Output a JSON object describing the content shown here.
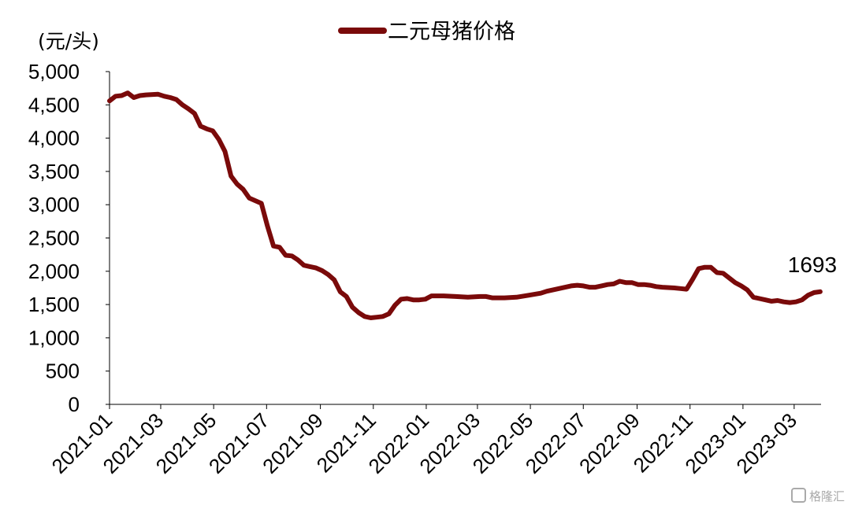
{
  "chart_data": {
    "type": "line",
    "unit_label": "(元/头)",
    "ylim": [
      0,
      5000
    ],
    "y_ticks": [
      {
        "value": 0,
        "label": "0"
      },
      {
        "value": 500,
        "label": "500"
      },
      {
        "value": 1000,
        "label": "1,000"
      },
      {
        "value": 1500,
        "label": "1,500"
      },
      {
        "value": 2000,
        "label": "2,000"
      },
      {
        "value": 2500,
        "label": "2,500"
      },
      {
        "value": 3000,
        "label": "3,000"
      },
      {
        "value": 3500,
        "label": "3,500"
      },
      {
        "value": 4000,
        "label": "4,000"
      },
      {
        "value": 4500,
        "label": "4,500"
      },
      {
        "value": 5000,
        "label": "5,000"
      }
    ],
    "x_ticks": [
      "2021-01",
      "2021-03",
      "2021-05",
      "2021-07",
      "2021-09",
      "2021-11",
      "2022-01",
      "2022-03",
      "2022-05",
      "2022-07",
      "2022-09",
      "2022-11",
      "2023-01",
      "2023-03"
    ],
    "legend_position": "top-center",
    "grid": false,
    "series": [
      {
        "name": "二元母猪价格",
        "color": "#7a0a0a",
        "points": [
          [
            "2021-01-01",
            4560
          ],
          [
            "2021-01-08",
            4630
          ],
          [
            "2021-01-15",
            4640
          ],
          [
            "2021-01-22",
            4680
          ],
          [
            "2021-01-29",
            4610
          ],
          [
            "2021-02-05",
            4640
          ],
          [
            "2021-02-12",
            4650
          ],
          [
            "2021-02-26",
            4660
          ],
          [
            "2021-03-05",
            4630
          ],
          [
            "2021-03-12",
            4610
          ],
          [
            "2021-03-19",
            4580
          ],
          [
            "2021-03-26",
            4500
          ],
          [
            "2021-04-02",
            4440
          ],
          [
            "2021-04-09",
            4370
          ],
          [
            "2021-04-16",
            4180
          ],
          [
            "2021-04-23",
            4140
          ],
          [
            "2021-04-30",
            4110
          ],
          [
            "2021-05-07",
            3980
          ],
          [
            "2021-05-14",
            3800
          ],
          [
            "2021-05-21",
            3430
          ],
          [
            "2021-05-28",
            3310
          ],
          [
            "2021-06-04",
            3230
          ],
          [
            "2021-06-11",
            3100
          ],
          [
            "2021-06-18",
            3060
          ],
          [
            "2021-06-25",
            3020
          ],
          [
            "2021-07-02",
            2680
          ],
          [
            "2021-07-09",
            2380
          ],
          [
            "2021-07-16",
            2360
          ],
          [
            "2021-07-23",
            2240
          ],
          [
            "2021-07-30",
            2230
          ],
          [
            "2021-08-06",
            2170
          ],
          [
            "2021-08-13",
            2090
          ],
          [
            "2021-08-20",
            2070
          ],
          [
            "2021-08-27",
            2050
          ],
          [
            "2021-09-03",
            2010
          ],
          [
            "2021-09-10",
            1950
          ],
          [
            "2021-09-17",
            1870
          ],
          [
            "2021-09-24",
            1690
          ],
          [
            "2021-10-01",
            1620
          ],
          [
            "2021-10-08",
            1460
          ],
          [
            "2021-10-15",
            1380
          ],
          [
            "2021-10-22",
            1320
          ],
          [
            "2021-10-29",
            1300
          ],
          [
            "2021-11-05",
            1310
          ],
          [
            "2021-11-12",
            1320
          ],
          [
            "2021-11-19",
            1360
          ],
          [
            "2021-11-26",
            1490
          ],
          [
            "2021-12-03",
            1580
          ],
          [
            "2021-12-10",
            1590
          ],
          [
            "2021-12-17",
            1570
          ],
          [
            "2021-12-24",
            1570
          ],
          [
            "2021-12-31",
            1580
          ],
          [
            "2022-01-07",
            1630
          ],
          [
            "2022-01-21",
            1630
          ],
          [
            "2022-02-04",
            1620
          ],
          [
            "2022-02-18",
            1610
          ],
          [
            "2022-03-04",
            1620
          ],
          [
            "2022-03-11",
            1620
          ],
          [
            "2022-03-18",
            1600
          ],
          [
            "2022-04-01",
            1600
          ],
          [
            "2022-04-15",
            1610
          ],
          [
            "2022-04-29",
            1640
          ],
          [
            "2022-05-13",
            1670
          ],
          [
            "2022-05-20",
            1700
          ],
          [
            "2022-06-03",
            1740
          ],
          [
            "2022-06-17",
            1780
          ],
          [
            "2022-06-24",
            1790
          ],
          [
            "2022-07-01",
            1780
          ],
          [
            "2022-07-08",
            1760
          ],
          [
            "2022-07-15",
            1760
          ],
          [
            "2022-07-22",
            1780
          ],
          [
            "2022-07-29",
            1800
          ],
          [
            "2022-08-05",
            1810
          ],
          [
            "2022-08-12",
            1850
          ],
          [
            "2022-08-19",
            1830
          ],
          [
            "2022-08-26",
            1830
          ],
          [
            "2022-09-02",
            1800
          ],
          [
            "2022-09-09",
            1800
          ],
          [
            "2022-09-16",
            1790
          ],
          [
            "2022-09-23",
            1770
          ],
          [
            "2022-09-30",
            1760
          ],
          [
            "2022-10-14",
            1750
          ],
          [
            "2022-10-21",
            1740
          ],
          [
            "2022-10-28",
            1730
          ],
          [
            "2022-11-04",
            1880
          ],
          [
            "2022-11-11",
            2040
          ],
          [
            "2022-11-18",
            2060
          ],
          [
            "2022-11-25",
            2060
          ],
          [
            "2022-12-02",
            1980
          ],
          [
            "2022-12-09",
            1970
          ],
          [
            "2022-12-16",
            1900
          ],
          [
            "2022-12-23",
            1830
          ],
          [
            "2022-12-30",
            1780
          ],
          [
            "2023-01-06",
            1720
          ],
          [
            "2023-01-13",
            1610
          ],
          [
            "2023-01-20",
            1590
          ],
          [
            "2023-01-27",
            1570
          ],
          [
            "2023-02-03",
            1550
          ],
          [
            "2023-02-10",
            1560
          ],
          [
            "2023-02-17",
            1540
          ],
          [
            "2023-02-24",
            1530
          ],
          [
            "2023-03-03",
            1540
          ],
          [
            "2023-03-10",
            1570
          ],
          [
            "2023-03-17",
            1640
          ],
          [
            "2023-03-24",
            1680
          ],
          [
            "2023-03-31",
            1693
          ]
        ]
      }
    ],
    "annotations": [
      {
        "text": "1693",
        "at": "last-point"
      }
    ]
  },
  "watermark": {
    "text": "格隆汇"
  }
}
